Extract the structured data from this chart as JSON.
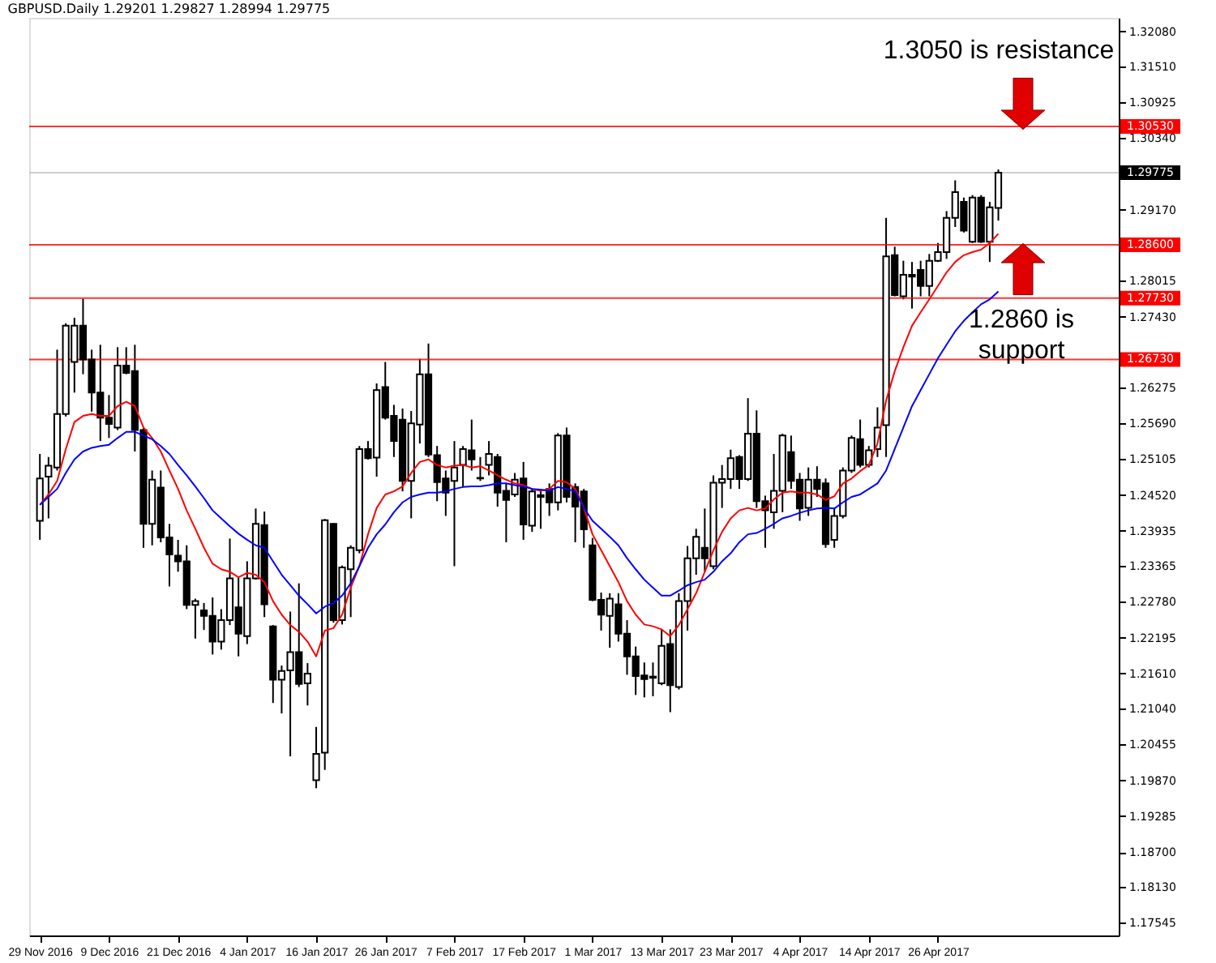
{
  "chart_data": {
    "type": "candlestick",
    "title": "GBPUSD.Daily  1.29201 1.29827 1.28994 1.29775",
    "categories": [
      "29 Nov 2016",
      null,
      null,
      null,
      null,
      null,
      null,
      null,
      "9 Dec 2016",
      null,
      null,
      null,
      null,
      null,
      null,
      null,
      "21 Dec 2016",
      null,
      null,
      null,
      null,
      null,
      null,
      null,
      "4 Jan 2017",
      null,
      null,
      null,
      null,
      null,
      null,
      null,
      "16 Jan 2017",
      null,
      null,
      null,
      null,
      null,
      null,
      null,
      "26 Jan 2017",
      null,
      null,
      null,
      null,
      null,
      null,
      null,
      "7 Feb 2017",
      null,
      null,
      null,
      null,
      null,
      null,
      null,
      "17 Feb 2017",
      null,
      null,
      null,
      null,
      null,
      null,
      null,
      "1 Mar 2017",
      null,
      null,
      null,
      null,
      null,
      null,
      null,
      "13 Mar 2017",
      null,
      null,
      null,
      null,
      null,
      null,
      null,
      "23 Mar 2017",
      null,
      null,
      null,
      null,
      null,
      null,
      null,
      "4 Apr 2017",
      null,
      null,
      null,
      null,
      null,
      null,
      null,
      "14 Apr 2017",
      null,
      null,
      null,
      null,
      null,
      null,
      null,
      "26 Apr 2017",
      null,
      null,
      null,
      null,
      null,
      null,
      null
    ],
    "ohlc": [
      [
        1.241,
        1.2519,
        1.2379,
        1.2479
      ],
      [
        1.2482,
        1.2514,
        1.2414,
        1.25
      ],
      [
        1.2497,
        1.2689,
        1.2492,
        1.2584
      ],
      [
        1.2584,
        1.2732,
        1.258,
        1.2728
      ],
      [
        1.2669,
        1.2741,
        1.2619,
        1.2728
      ],
      [
        1.2728,
        1.2772,
        1.2649,
        1.2673
      ],
      [
        1.2673,
        1.2689,
        1.2588,
        1.2619
      ],
      [
        1.2619,
        1.2697,
        1.254,
        1.2578
      ],
      [
        1.2578,
        1.2615,
        1.2545,
        1.2568
      ],
      [
        1.2562,
        1.2693,
        1.2558,
        1.2663
      ],
      [
        1.2663,
        1.2693,
        1.2649,
        1.2651
      ],
      [
        1.2654,
        1.2697,
        1.2523,
        1.2558
      ],
      [
        1.2558,
        1.2562,
        1.2366,
        1.2405
      ],
      [
        1.2405,
        1.2492,
        1.237,
        1.2477
      ],
      [
        1.2464,
        1.2492,
        1.2375,
        1.2383
      ],
      [
        1.2383,
        1.2405,
        1.2303,
        1.2355
      ],
      [
        1.2353,
        1.2379,
        1.2327,
        1.2344
      ],
      [
        1.2344,
        1.237,
        1.2266,
        1.2273
      ],
      [
        1.2273,
        1.2283,
        1.2218,
        1.2279
      ],
      [
        1.2264,
        1.2276,
        1.2232,
        1.2255
      ],
      [
        1.2255,
        1.2285,
        1.2192,
        1.2213
      ],
      [
        1.2213,
        1.2266,
        1.22,
        1.2248
      ],
      [
        1.2248,
        1.2381,
        1.224,
        1.2316
      ],
      [
        1.2269,
        1.2318,
        1.2189,
        1.2226
      ],
      [
        1.2222,
        1.2344,
        1.2209,
        1.2316
      ],
      [
        1.2316,
        1.243,
        1.2314,
        1.2405
      ],
      [
        1.2403,
        1.2425,
        1.2253,
        1.2274
      ],
      [
        1.2238,
        1.224,
        1.2113,
        1.2151
      ],
      [
        1.2151,
        1.2174,
        1.2096,
        1.2165
      ],
      [
        1.2166,
        1.2262,
        1.2026,
        1.2196
      ],
      [
        1.2196,
        1.2308,
        1.2139,
        1.2144
      ],
      [
        1.2145,
        1.2178,
        1.2109,
        1.2161
      ],
      [
        1.1987,
        1.2074,
        1.1974,
        1.203
      ],
      [
        1.2032,
        1.2413,
        1.2004,
        1.2411
      ],
      [
        1.2405,
        1.2406,
        1.2244,
        1.2248
      ],
      [
        1.2248,
        1.2337,
        1.2241,
        1.2334
      ],
      [
        1.2331,
        1.237,
        1.2253,
        1.2366
      ],
      [
        1.2362,
        1.2532,
        1.2357,
        1.2527
      ],
      [
        1.2527,
        1.254,
        1.251,
        1.2512
      ],
      [
        1.2513,
        1.2634,
        1.2482,
        1.2623
      ],
      [
        1.2628,
        1.2669,
        1.2575,
        1.2578
      ],
      [
        1.2581,
        1.2599,
        1.2514,
        1.254
      ],
      [
        1.2575,
        1.2593,
        1.2458,
        1.2475
      ],
      [
        1.2475,
        1.2589,
        1.2414,
        1.2569
      ],
      [
        1.2567,
        1.2674,
        1.2536,
        1.2649
      ],
      [
        1.2649,
        1.2699,
        1.2514,
        1.2518
      ],
      [
        1.2517,
        1.2532,
        1.2442,
        1.2473
      ],
      [
        1.2479,
        1.2492,
        1.2418,
        1.2456
      ],
      [
        1.2475,
        1.254,
        1.2336,
        1.2497
      ],
      [
        1.2501,
        1.2532,
        1.2466,
        1.2527
      ],
      [
        1.2525,
        1.2575,
        1.2492,
        1.251
      ],
      [
        1.248,
        1.2514,
        1.2475,
        1.2479
      ],
      [
        1.2501,
        1.254,
        1.2484,
        1.2519
      ],
      [
        1.2514,
        1.2519,
        1.2433,
        1.2456
      ],
      [
        1.2459,
        1.2471,
        1.2375,
        1.2444
      ],
      [
        1.2453,
        1.2488,
        1.2449,
        1.2477
      ],
      [
        1.2479,
        1.2506,
        1.2379,
        1.2404
      ],
      [
        1.2402,
        1.2462,
        1.2392,
        1.2458
      ],
      [
        1.2452,
        1.2459,
        1.2397,
        1.2449
      ],
      [
        1.2462,
        1.2471,
        1.2418,
        1.244
      ],
      [
        1.244,
        1.2553,
        1.2427,
        1.2549
      ],
      [
        1.2549,
        1.2562,
        1.244,
        1.2449
      ],
      [
        1.2465,
        1.2471,
        1.2375,
        1.2433
      ],
      [
        1.2458,
        1.2462,
        1.2366,
        1.2396
      ],
      [
        1.237,
        1.2382,
        1.2279,
        1.2281
      ],
      [
        1.2281,
        1.2293,
        1.2231,
        1.2257
      ],
      [
        1.2255,
        1.2292,
        1.2203,
        1.2283
      ],
      [
        1.2274,
        1.2292,
        1.2213,
        1.2226
      ],
      [
        1.2226,
        1.2248,
        1.2159,
        1.2189
      ],
      [
        1.2189,
        1.2205,
        1.2126,
        1.2157
      ],
      [
        1.2158,
        1.2179,
        1.2122,
        1.2152
      ],
      [
        1.2154,
        1.2179,
        1.2124,
        1.2156
      ],
      [
        1.2145,
        1.2233,
        1.2142,
        1.2206
      ],
      [
        1.2209,
        1.2233,
        1.2098,
        1.2142
      ],
      [
        1.2139,
        1.2292,
        1.2135,
        1.2279
      ],
      [
        1.2279,
        1.2369,
        1.2231,
        1.2349
      ],
      [
        1.2349,
        1.2397,
        1.2322,
        1.2384
      ],
      [
        1.2366,
        1.243,
        1.2327,
        1.2349
      ],
      [
        1.2336,
        1.2484,
        1.2331,
        1.2472
      ],
      [
        1.2472,
        1.2501,
        1.2431,
        1.2478
      ],
      [
        1.2478,
        1.2526,
        1.2462,
        1.2512
      ],
      [
        1.2514,
        1.2517,
        1.2462,
        1.2478
      ],
      [
        1.2478,
        1.261,
        1.2475,
        1.2552
      ],
      [
        1.2552,
        1.259,
        1.2431,
        1.2442
      ],
      [
        1.2442,
        1.2451,
        1.2366,
        1.2427
      ],
      [
        1.2424,
        1.2519,
        1.2397,
        1.2459
      ],
      [
        1.2459,
        1.2552,
        1.2424,
        1.2549
      ],
      [
        1.2522,
        1.2549,
        1.2462,
        1.2475
      ],
      [
        1.2477,
        1.2488,
        1.241,
        1.243
      ],
      [
        1.2431,
        1.2497,
        1.2418,
        1.2477
      ],
      [
        1.2477,
        1.2499,
        1.2449,
        1.2462
      ],
      [
        1.2471,
        1.2479,
        1.2366,
        1.2372
      ],
      [
        1.2379,
        1.2431,
        1.2366,
        1.2418
      ],
      [
        1.2418,
        1.2497,
        1.2414,
        1.2492
      ],
      [
        1.2492,
        1.2549,
        1.2488,
        1.2545
      ],
      [
        1.2543,
        1.2575,
        1.2497,
        1.2501
      ],
      [
        1.2501,
        1.2532,
        1.2497,
        1.2525
      ],
      [
        1.2527,
        1.2595,
        1.2514,
        1.2562
      ],
      [
        1.2566,
        1.2904,
        1.2514,
        1.2841
      ],
      [
        1.2843,
        1.2857,
        1.2776,
        1.2778
      ],
      [
        1.2776,
        1.2834,
        1.2771,
        1.2811
      ],
      [
        1.2811,
        1.2832,
        1.2756,
        1.2808
      ],
      [
        1.2819,
        1.2834,
        1.2776,
        1.2793
      ],
      [
        1.2793,
        1.2845,
        1.2776,
        1.2834
      ],
      [
        1.2834,
        1.2863,
        1.2832,
        1.2848
      ],
      [
        1.2848,
        1.2915,
        1.2837,
        1.2904
      ],
      [
        1.2904,
        1.2965,
        1.2889,
        1.2946
      ],
      [
        1.293,
        1.2937,
        1.288,
        1.2883
      ],
      [
        1.2865,
        1.2941,
        1.2863,
        1.2937
      ],
      [
        1.2937,
        1.2941,
        1.2863,
        1.2865
      ],
      [
        1.2865,
        1.293,
        1.2832,
        1.2921
      ],
      [
        1.29201,
        1.29827,
        1.28994,
        1.29775
      ]
    ],
    "series": [
      {
        "type": "line",
        "color": "#ff0000",
        "values": [
          1.2436,
          1.2453,
          1.2475,
          1.2527,
          1.2571,
          1.2581,
          1.2584,
          1.2581,
          1.2581,
          1.2597,
          1.2604,
          1.2597,
          1.2562,
          1.2545,
          1.2523,
          1.2492,
          1.2462,
          1.2427,
          1.2397,
          1.2366,
          1.234,
          1.2331,
          1.2327,
          1.2318,
          1.2325,
          1.2322,
          1.231,
          1.2279,
          1.2257,
          1.224,
          1.2229,
          1.2213,
          1.2189,
          1.2231,
          1.2235,
          1.2257,
          1.2301,
          1.2336,
          1.2388,
          1.2431,
          1.2453,
          1.2458,
          1.2466,
          1.2488,
          1.2506,
          1.251,
          1.2501,
          1.2497,
          1.25,
          1.2501,
          1.2497,
          1.2499,
          1.2492,
          1.2484,
          1.2477,
          1.2471,
          1.2468,
          1.2462,
          1.2459,
          1.2462,
          1.2475,
          1.2473,
          1.2462,
          1.2431,
          1.2388,
          1.2362,
          1.2336,
          1.231,
          1.2279,
          1.2257,
          1.2241,
          1.2238,
          1.2233,
          1.2222,
          1.224,
          1.2266,
          1.2292,
          1.2327,
          1.2362,
          1.2392,
          1.2414,
          1.2427,
          1.2431,
          1.2427,
          1.243,
          1.2445,
          1.2456,
          1.2458,
          1.2456,
          1.2456,
          1.2453,
          1.2444,
          1.245,
          1.2471,
          1.2479,
          1.2491,
          1.2501,
          1.2536,
          1.2606,
          1.2654,
          1.2693,
          1.2728,
          1.275,
          1.2771,
          1.2793,
          1.2815,
          1.2832,
          1.2843,
          1.2848,
          1.2852,
          1.2863,
          1.2878
        ]
      },
      {
        "type": "line",
        "color": "#0000ff",
        "values": [
          1.2436,
          1.2449,
          1.2462,
          1.2488,
          1.251,
          1.2523,
          1.2529,
          1.2532,
          1.2534,
          1.2545,
          1.2555,
          1.2555,
          1.2549,
          1.2543,
          1.2532,
          1.2519,
          1.2501,
          1.2484,
          1.2466,
          1.2447,
          1.2427,
          1.2414,
          1.2401,
          1.2389,
          1.2379,
          1.237,
          1.2366,
          1.2344,
          1.2322,
          1.2305,
          1.2288,
          1.2274,
          1.2259,
          1.227,
          1.2276,
          1.2288,
          1.2308,
          1.2336,
          1.2366,
          1.2388,
          1.2404,
          1.2424,
          1.244,
          1.2449,
          1.2453,
          1.2456,
          1.2456,
          1.2458,
          1.2462,
          1.2465,
          1.2466,
          1.2466,
          1.2468,
          1.2471,
          1.2471,
          1.2468,
          1.2466,
          1.2462,
          1.2461,
          1.2459,
          1.2465,
          1.2462,
          1.2458,
          1.2431,
          1.241,
          1.2397,
          1.2384,
          1.237,
          1.2349,
          1.2331,
          1.2314,
          1.2301,
          1.2288,
          1.2288,
          1.2296,
          1.2305,
          1.231,
          1.2314,
          1.2327,
          1.2344,
          1.2357,
          1.2375,
          1.2388,
          1.239,
          1.2397,
          1.2405,
          1.2414,
          1.2418,
          1.2423,
          1.2427,
          1.243,
          1.2431,
          1.243,
          1.244,
          1.2449,
          1.2453,
          1.2462,
          1.2471,
          1.2492,
          1.2527,
          1.2562,
          1.2597,
          1.2623,
          1.2649,
          1.2675,
          1.2697,
          1.2719,
          1.2736,
          1.275,
          1.2763,
          1.2771,
          1.2784
        ]
      }
    ],
    "ylim": [
      1.1734,
      1.323
    ],
    "yticks": [
      {
        "value": 1.3208,
        "label": "1.32080"
      },
      {
        "value": 1.3151,
        "label": "1.31510"
      },
      1.30925,
      {
        "value": 1.3034,
        "label": "1.30340"
      },
      {
        "value": 1.2917,
        "label": "1.29170"
      },
      1.28015,
      {
        "value": 1.2743,
        "label": "1.27430"
      },
      1.26275,
      {
        "value": 1.2569,
        "label": "1.25690"
      },
      1.25105,
      {
        "value": 1.2452,
        "label": "1.24520"
      },
      1.23935,
      1.23365,
      {
        "value": 1.2278,
        "label": "1.22780"
      },
      1.22195,
      {
        "value": 1.2161,
        "label": "1.21610"
      },
      {
        "value": 1.2104,
        "label": "1.21040"
      },
      1.20455,
      {
        "value": 1.1987,
        "label": "1.19870"
      },
      1.19285,
      {
        "value": 1.187,
        "label": "1.18700"
      },
      {
        "value": 1.1813,
        "label": "1.18130"
      },
      1.17545
    ],
    "ref_lines": [
      {
        "axis": "y",
        "value": 1.3053,
        "label": "1.30530",
        "color": "#ff0000"
      },
      {
        "axis": "y",
        "value": 1.29775,
        "label": "1.29775",
        "color": "#c0c0c0"
      },
      {
        "axis": "y",
        "value": 1.286,
        "label": "1.28600",
        "color": "#ff0000"
      },
      {
        "axis": "y",
        "value": 1.2773,
        "label": "1.27730",
        "color": "#ff0000"
      },
      {
        "axis": "y",
        "value": 1.2673,
        "label": "1.26730",
        "color": "#ff0000"
      }
    ],
    "annotations": [
      "1.3050 is resistance",
      "1.2860 is support"
    ],
    "grid": false
  }
}
